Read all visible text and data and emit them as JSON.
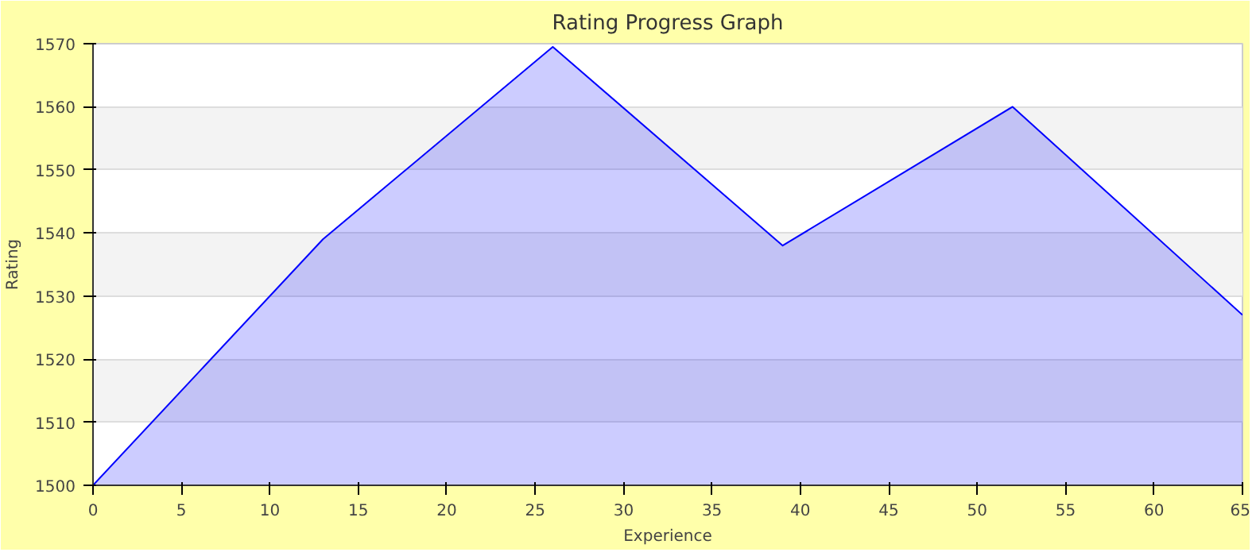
{
  "chart_data": {
    "type": "area",
    "title": "Rating Progress Graph",
    "xlabel": "Experience",
    "ylabel": "Rating",
    "x": [
      0,
      13,
      26,
      39,
      52,
      65
    ],
    "series": [
      {
        "color": "#0000ff",
        "values": [
          1500,
          1539,
          1569.5,
          1538,
          1560,
          1527
        ]
      }
    ],
    "xlim": [
      0,
      65
    ],
    "xticks": [
      0,
      5,
      10,
      15,
      20,
      25,
      30,
      35,
      40,
      45,
      50,
      55,
      60,
      65
    ],
    "ylim": [
      1500,
      1570
    ],
    "yticks": [
      1500,
      1510,
      1520,
      1530,
      1540,
      1550,
      1560,
      1570
    ],
    "grid": "y"
  }
}
